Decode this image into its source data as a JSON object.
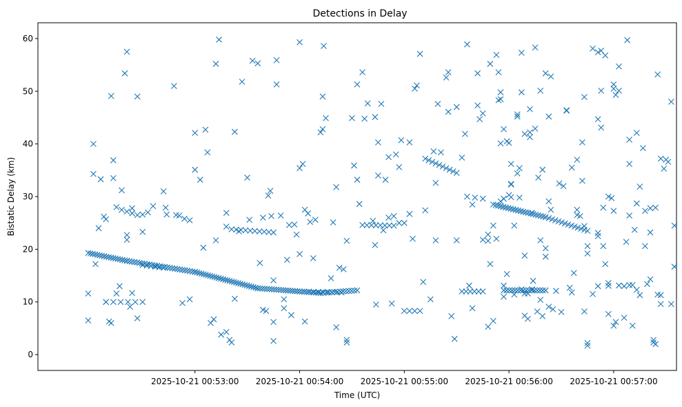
{
  "chart_data": {
    "type": "scatter",
    "title": "Detections in Delay",
    "xlabel": "Time (UTC)",
    "ylabel": "Bistatic Delay (km)",
    "x_unit": "minutes after 00:52:00",
    "xlim": [
      -0.5,
      5.6
    ],
    "ylim": [
      -3,
      63
    ],
    "x_ticks": [
      {
        "value": 1,
        "label": "2025-10-21 00:53:00"
      },
      {
        "value": 2,
        "label": "2025-10-21 00:54:00"
      },
      {
        "value": 3,
        "label": "2025-10-21 00:55:00"
      },
      {
        "value": 4,
        "label": "2025-10-21 00:56:00"
      },
      {
        "value": 5,
        "label": "2025-10-21 00:57:00"
      }
    ],
    "y_ticks": [
      0,
      10,
      20,
      30,
      40,
      50,
      60
    ],
    "marker": "x",
    "color": "#1f77b4",
    "track_segments": [
      {
        "x0": -0.02,
        "y0": 19.3,
        "x1": 0.35,
        "y1": 17.8,
        "n": 18
      },
      {
        "x0": 0.35,
        "y0": 17.8,
        "x1": 1.0,
        "y1": 15.7,
        "n": 28
      },
      {
        "x0": 1.0,
        "y0": 15.7,
        "x1": 1.6,
        "y1": 12.6,
        "n": 30
      },
      {
        "x0": 1.6,
        "y0": 12.6,
        "x1": 2.2,
        "y1": 11.7,
        "n": 28
      },
      {
        "x0": 2.2,
        "y0": 11.7,
        "x1": 2.55,
        "y1": 12.2,
        "n": 14
      },
      {
        "x0": 1.35,
        "y0": 23.8,
        "x1": 1.75,
        "y1": 23.2,
        "n": 10
      },
      {
        "x0": 3.2,
        "y0": 37.2,
        "x1": 3.5,
        "y1": 34.5,
        "n": 10
      },
      {
        "x0": 4.85,
        "y0": 13.0,
        "x1": 5.15,
        "y1": 13.2,
        "n": 4
      },
      {
        "x0": 3.85,
        "y0": 28.5,
        "x1": 4.35,
        "y1": 26.1,
        "n": 22
      },
      {
        "x0": 4.35,
        "y0": 26.1,
        "x1": 4.75,
        "y1": 23.5,
        "n": 14
      },
      {
        "x0": 3.95,
        "y0": 12.2,
        "x1": 4.35,
        "y1": 12.2,
        "n": 16
      },
      {
        "x0": 2.0,
        "y0": 12.0,
        "x1": 2.4,
        "y1": 11.8,
        "n": 10
      },
      {
        "x0": 0.15,
        "y0": 10.0,
        "x1": 0.5,
        "y1": 10.0,
        "n": 6
      },
      {
        "x0": 3.55,
        "y0": 12.0,
        "x1": 3.75,
        "y1": 12.0,
        "n": 6
      },
      {
        "x0": 3.6,
        "y0": 30.0,
        "x1": 3.75,
        "y1": 29.6,
        "n": 3
      },
      {
        "x0": 2.6,
        "y0": 24.6,
        "x1": 2.9,
        "y1": 24.5,
        "n": 8
      },
      {
        "x0": 3.0,
        "y0": 8.3,
        "x1": 3.15,
        "y1": 8.3,
        "n": 4
      },
      {
        "x0": 0.3,
        "y0": 27.5,
        "x1": 0.45,
        "y1": 26.5,
        "n": 4
      },
      {
        "x0": 0.5,
        "y0": 17.0,
        "x1": 0.7,
        "y1": 16.5,
        "n": 6
      }
    ],
    "points": [
      [
        -0.02,
        11.6
      ],
      [
        -0.02,
        6.5
      ],
      [
        0.03,
        34.3
      ],
      [
        0.03,
        40.0
      ],
      [
        0.05,
        17.2
      ],
      [
        0.08,
        24.0
      ],
      [
        0.1,
        33.3
      ],
      [
        0.13,
        26.2
      ],
      [
        0.15,
        25.7
      ],
      [
        0.15,
        10.0
      ],
      [
        0.18,
        6.3
      ],
      [
        0.2,
        6.0
      ],
      [
        0.2,
        49.1
      ],
      [
        0.22,
        36.9
      ],
      [
        0.22,
        33.5
      ],
      [
        0.25,
        28.0
      ],
      [
        0.25,
        11.6
      ],
      [
        0.28,
        13.0
      ],
      [
        0.3,
        31.2
      ],
      [
        0.33,
        53.4
      ],
      [
        0.35,
        57.5
      ],
      [
        0.35,
        22.7
      ],
      [
        0.35,
        21.8
      ],
      [
        0.38,
        9.1
      ],
      [
        0.4,
        27.8
      ],
      [
        0.4,
        11.7
      ],
      [
        0.45,
        49.0
      ],
      [
        0.45,
        6.9
      ],
      [
        0.5,
        23.3
      ],
      [
        0.5,
        26.6
      ],
      [
        0.55,
        27.0
      ],
      [
        0.6,
        28.2
      ],
      [
        0.7,
        31.0
      ],
      [
        0.72,
        27.9
      ],
      [
        0.73,
        26.6
      ],
      [
        0.8,
        51.0
      ],
      [
        0.82,
        26.5
      ],
      [
        0.85,
        26.4
      ],
      [
        0.88,
        9.8
      ],
      [
        0.9,
        25.8
      ],
      [
        0.95,
        25.5
      ],
      [
        0.95,
        10.5
      ],
      [
        1.0,
        42.1
      ],
      [
        1.0,
        35.1
      ],
      [
        1.05,
        33.2
      ],
      [
        1.08,
        20.3
      ],
      [
        1.1,
        42.7
      ],
      [
        1.12,
        38.4
      ],
      [
        1.15,
        6.0
      ],
      [
        1.18,
        6.7
      ],
      [
        1.2,
        55.2
      ],
      [
        1.2,
        21.7
      ],
      [
        1.23,
        59.8
      ],
      [
        1.25,
        3.8
      ],
      [
        1.3,
        26.9
      ],
      [
        1.3,
        24.3
      ],
      [
        1.3,
        4.3
      ],
      [
        1.33,
        2.8
      ],
      [
        1.35,
        2.3
      ],
      [
        1.38,
        42.3
      ],
      [
        1.38,
        10.6
      ],
      [
        1.42,
        23.4
      ],
      [
        1.45,
        51.8
      ],
      [
        1.5,
        33.6
      ],
      [
        1.52,
        25.6
      ],
      [
        1.55,
        55.8
      ],
      [
        1.6,
        55.3
      ],
      [
        1.62,
        17.4
      ],
      [
        1.65,
        26.0
      ],
      [
        1.65,
        8.5
      ],
      [
        1.68,
        8.3
      ],
      [
        1.7,
        30.2
      ],
      [
        1.72,
        31.1
      ],
      [
        1.73,
        26.3
      ],
      [
        1.75,
        14.1
      ],
      [
        1.75,
        6.2
      ],
      [
        1.75,
        2.6
      ],
      [
        1.78,
        51.3
      ],
      [
        1.78,
        55.9
      ],
      [
        1.82,
        26.4
      ],
      [
        1.85,
        10.5
      ],
      [
        1.85,
        8.8
      ],
      [
        1.88,
        18.0
      ],
      [
        1.9,
        24.6
      ],
      [
        1.92,
        7.5
      ],
      [
        1.95,
        24.7
      ],
      [
        1.97,
        22.8
      ],
      [
        2.0,
        59.3
      ],
      [
        2.0,
        35.4
      ],
      [
        2.0,
        19.1
      ],
      [
        2.03,
        36.2
      ],
      [
        2.05,
        27.5
      ],
      [
        2.05,
        6.3
      ],
      [
        2.08,
        26.8
      ],
      [
        2.1,
        25.2
      ],
      [
        2.13,
        18.3
      ],
      [
        2.15,
        25.6
      ],
      [
        2.2,
        42.2
      ],
      [
        2.22,
        49.0
      ],
      [
        2.22,
        42.8
      ],
      [
        2.23,
        58.6
      ],
      [
        2.25,
        44.9
      ],
      [
        2.3,
        14.5
      ],
      [
        2.32,
        25.1
      ],
      [
        2.35,
        31.8
      ],
      [
        2.35,
        5.2
      ],
      [
        2.38,
        16.5
      ],
      [
        2.42,
        16.2
      ],
      [
        2.45,
        21.6
      ],
      [
        2.45,
        2.3
      ],
      [
        2.45,
        2.8
      ],
      [
        2.5,
        44.9
      ],
      [
        2.52,
        35.9
      ],
      [
        2.55,
        51.3
      ],
      [
        2.55,
        33.2
      ],
      [
        2.57,
        28.6
      ],
      [
        2.6,
        53.6
      ],
      [
        2.62,
        44.8
      ],
      [
        2.65,
        47.7
      ],
      [
        2.7,
        25.4
      ],
      [
        2.72,
        45.1
      ],
      [
        2.72,
        20.8
      ],
      [
        2.73,
        9.5
      ],
      [
        2.75,
        40.3
      ],
      [
        2.75,
        34.0
      ],
      [
        2.78,
        47.6
      ],
      [
        2.8,
        23.6
      ],
      [
        2.82,
        33.2
      ],
      [
        2.85,
        37.5
      ],
      [
        2.85,
        26.0
      ],
      [
        2.88,
        9.7
      ],
      [
        2.9,
        26.3
      ],
      [
        2.92,
        38.0
      ],
      [
        2.95,
        35.6
      ],
      [
        2.95,
        25.0
      ],
      [
        2.97,
        40.7
      ],
      [
        3.0,
        25.0
      ],
      [
        3.05,
        26.7
      ],
      [
        3.05,
        40.3
      ],
      [
        3.08,
        22.0
      ],
      [
        3.1,
        50.5
      ],
      [
        3.12,
        51.1
      ],
      [
        3.15,
        57.1
      ],
      [
        3.18,
        13.8
      ],
      [
        3.2,
        27.4
      ],
      [
        3.25,
        10.5
      ],
      [
        3.28,
        38.6
      ],
      [
        3.3,
        21.7
      ],
      [
        3.3,
        32.6
      ],
      [
        3.32,
        47.6
      ],
      [
        3.35,
        38.4
      ],
      [
        3.4,
        52.6
      ],
      [
        3.42,
        53.6
      ],
      [
        3.42,
        46.1
      ],
      [
        3.45,
        7.3
      ],
      [
        3.48,
        3.0
      ],
      [
        3.5,
        47.0
      ],
      [
        3.5,
        21.7
      ],
      [
        3.55,
        37.4
      ],
      [
        3.58,
        41.9
      ],
      [
        3.6,
        58.9
      ],
      [
        3.62,
        13.1
      ],
      [
        3.65,
        28.5
      ],
      [
        3.65,
        8.8
      ],
      [
        3.7,
        47.3
      ],
      [
        3.7,
        53.4
      ],
      [
        3.72,
        44.7
      ],
      [
        3.75,
        45.8
      ],
      [
        3.75,
        21.8
      ],
      [
        3.8,
        22.8
      ],
      [
        3.8,
        5.3
      ],
      [
        3.82,
        55.2
      ],
      [
        3.85,
        6.4
      ],
      [
        3.88,
        56.9
      ],
      [
        3.9,
        48.3
      ],
      [
        3.92,
        29.1
      ],
      [
        3.92,
        40.1
      ],
      [
        3.95,
        42.8
      ],
      [
        3.95,
        13.1
      ],
      [
        3.98,
        15.3
      ],
      [
        4.0,
        30.3
      ],
      [
        4.02,
        29.9
      ],
      [
        4.02,
        36.2
      ],
      [
        4.05,
        11.4
      ],
      [
        4.08,
        34.4
      ],
      [
        4.12,
        57.3
      ],
      [
        4.12,
        49.8
      ],
      [
        4.15,
        41.9
      ],
      [
        4.15,
        18.8
      ],
      [
        4.18,
        11.6
      ],
      [
        4.2,
        42.2
      ],
      [
        4.22,
        12.4
      ],
      [
        4.25,
        42.9
      ],
      [
        4.28,
        33.6
      ],
      [
        4.3,
        21.7
      ],
      [
        4.32,
        35.1
      ],
      [
        4.35,
        53.4
      ],
      [
        4.38,
        45.2
      ],
      [
        4.4,
        27.5
      ],
      [
        4.45,
        12.1
      ],
      [
        4.48,
        32.5
      ],
      [
        4.52,
        32.0
      ],
      [
        4.55,
        46.4
      ],
      [
        4.58,
        12.7
      ],
      [
        4.6,
        35.5
      ],
      [
        4.65,
        37.0
      ],
      [
        4.65,
        27.5
      ],
      [
        4.7,
        33.0
      ],
      [
        4.72,
        24.4
      ],
      [
        4.72,
        8.2
      ],
      [
        4.75,
        1.7
      ],
      [
        4.75,
        20.6
      ],
      [
        4.75,
        19.2
      ],
      [
        4.8,
        11.5
      ],
      [
        4.85,
        44.7
      ],
      [
        4.85,
        57.4
      ],
      [
        4.88,
        43.1
      ],
      [
        4.9,
        27.9
      ],
      [
        4.92,
        17.2
      ],
      [
        4.95,
        30.0
      ],
      [
        4.95,
        13.6
      ],
      [
        4.98,
        29.7
      ],
      [
        5.0,
        27.3
      ],
      [
        5.0,
        5.5
      ],
      [
        5.02,
        49.3
      ],
      [
        5.05,
        50.1
      ],
      [
        5.1,
        7.0
      ],
      [
        5.12,
        21.4
      ],
      [
        5.15,
        26.4
      ],
      [
        5.18,
        5.5
      ],
      [
        5.2,
        23.7
      ],
      [
        5.22,
        28.7
      ],
      [
        5.25,
        31.9
      ],
      [
        5.28,
        39.2
      ],
      [
        5.3,
        20.6
      ],
      [
        5.35,
        14.3
      ],
      [
        5.38,
        2.8
      ],
      [
        5.42,
        53.2
      ],
      [
        5.45,
        37.2
      ],
      [
        5.5,
        37.0
      ],
      [
        5.52,
        36.6
      ],
      [
        5.55,
        48.0
      ],
      [
        5.55,
        9.6
      ],
      [
        5.58,
        24.5
      ],
      [
        5.58,
        16.7
      ]
    ],
    "points_right": [
      [
        0.0,
        21.6
      ],
      [
        0.02,
        17.2
      ],
      [
        0.05,
        24.5
      ],
      [
        0.08,
        22.0
      ],
      [
        0.1,
        53.6
      ],
      [
        0.12,
        49.8
      ],
      [
        0.12,
        48.5
      ],
      [
        0.15,
        29.6
      ],
      [
        0.15,
        11.0
      ],
      [
        0.18,
        40.5
      ],
      [
        0.2,
        40.2
      ],
      [
        0.22,
        32.3
      ],
      [
        0.22,
        32.4
      ],
      [
        0.25,
        24.5
      ],
      [
        0.28,
        45.6
      ],
      [
        0.28,
        45.2
      ],
      [
        0.3,
        35.4
      ],
      [
        0.3,
        29.8
      ],
      [
        0.32,
        12.4
      ],
      [
        0.35,
        11.6
      ],
      [
        0.35,
        7.4
      ],
      [
        0.38,
        6.8
      ],
      [
        0.4,
        46.6
      ],
      [
        0.4,
        41.3
      ],
      [
        0.42,
        26.9
      ],
      [
        0.43,
        14.0
      ],
      [
        0.45,
        58.3
      ],
      [
        0.47,
        8.2
      ],
      [
        0.5,
        50.1
      ],
      [
        0.5,
        10.4
      ],
      [
        0.52,
        7.3
      ],
      [
        0.55,
        18.6
      ],
      [
        0.55,
        20.2
      ],
      [
        0.58,
        29.1
      ],
      [
        0.58,
        9.1
      ],
      [
        0.6,
        52.8
      ],
      [
        0.62,
        8.6
      ],
      [
        0.7,
        8.1
      ],
      [
        0.75,
        46.3
      ],
      [
        0.8,
        11.8
      ],
      [
        0.82,
        15.5
      ],
      [
        0.85,
        26.5
      ],
      [
        0.88,
        26.3
      ],
      [
        0.9,
        40.3
      ],
      [
        0.92,
        48.9
      ],
      [
        0.95,
        2.2
      ],
      [
        1.0,
        58.1
      ],
      [
        1.05,
        22.5
      ],
      [
        1.05,
        23.1
      ],
      [
        1.08,
        57.7
      ],
      [
        1.08,
        50.1
      ],
      [
        1.1,
        20.6
      ],
      [
        1.12,
        56.8
      ],
      [
        1.15,
        7.7
      ],
      [
        1.2,
        50.5
      ],
      [
        1.2,
        51.3
      ],
      [
        1.22,
        6.2
      ],
      [
        1.25,
        54.7
      ],
      [
        1.3,
        13.0
      ],
      [
        1.33,
        59.7
      ],
      [
        1.35,
        40.8
      ],
      [
        1.35,
        36.2
      ],
      [
        1.38,
        13.2
      ],
      [
        1.42,
        42.1
      ],
      [
        1.42,
        12.3
      ],
      [
        1.45,
        11.3
      ],
      [
        1.5,
        27.3
      ],
      [
        1.52,
        13.4
      ],
      [
        1.55,
        27.8
      ],
      [
        1.55,
        23.2
      ],
      [
        1.58,
        2.3
      ],
      [
        1.6,
        2.0
      ],
      [
        1.6,
        27.9
      ],
      [
        1.62,
        11.4
      ],
      [
        1.65,
        11.3
      ],
      [
        1.65,
        9.6
      ],
      [
        1.68,
        35.3
      ]
    ],
    "right_offset": 3.8
  }
}
